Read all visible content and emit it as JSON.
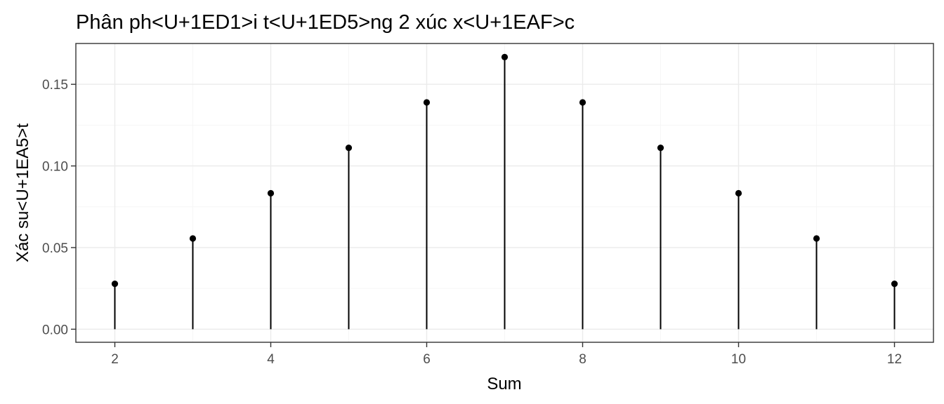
{
  "chart_data": {
    "type": "lollipop",
    "title": "Phân ph<U+1ED1>i t<U+1ED5>ng 2 xúc x<U+1EAF>c",
    "xlabel": "Sum",
    "ylabel": "Xác su<U+1EA5>t",
    "x": [
      2,
      3,
      4,
      5,
      6,
      7,
      8,
      9,
      10,
      11,
      12
    ],
    "y": [
      0.0278,
      0.0556,
      0.0833,
      0.1111,
      0.1389,
      0.1667,
      0.1389,
      0.1111,
      0.0833,
      0.0556,
      0.0278
    ],
    "xlim": [
      1.5,
      12.5
    ],
    "ylim": [
      -0.008,
      0.175
    ],
    "x_ticks": [
      2,
      4,
      6,
      8,
      10,
      12
    ],
    "x_tick_labels": [
      "2",
      "4",
      "6",
      "8",
      "10",
      "12"
    ],
    "y_ticks": [
      0.0,
      0.05,
      0.1,
      0.15
    ],
    "y_tick_labels": [
      "0.00",
      "0.05",
      "0.10",
      "0.15"
    ],
    "grid": true,
    "colors": {
      "marks": "#000000",
      "grid": "#ebebeb",
      "border": "#333333"
    }
  }
}
